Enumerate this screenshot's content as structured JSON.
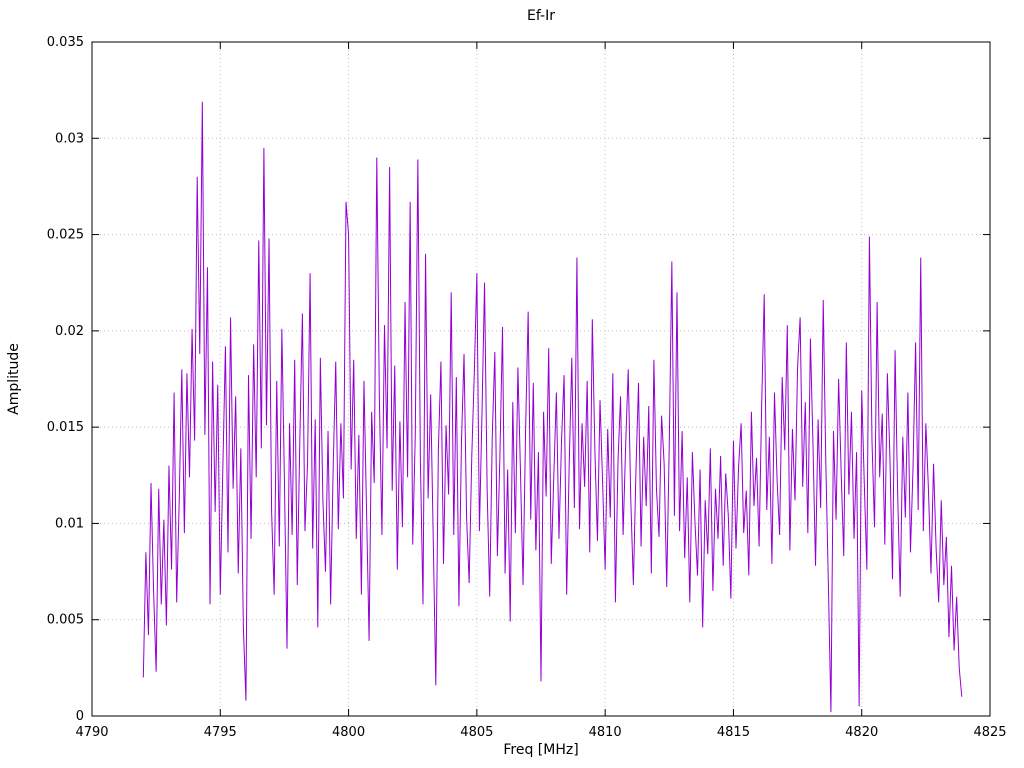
{
  "chart_data": {
    "type": "line",
    "title": "Ef-Ir",
    "xlabel": "Freq [MHz]",
    "ylabel": "Amplitude",
    "xlim": [
      4790,
      4825
    ],
    "ylim": [
      0,
      0.035
    ],
    "x_ticks": [
      4790,
      4795,
      4800,
      4805,
      4810,
      4815,
      4820,
      4825
    ],
    "x_tick_labels": [
      "4790",
      "4795",
      "4800",
      "4805",
      "4810",
      "4815",
      "4820",
      "4825"
    ],
    "y_ticks": [
      0,
      0.005,
      0.01,
      0.015,
      0.02,
      0.025,
      0.03,
      0.035
    ],
    "y_tick_labels": [
      "0",
      "0.005",
      "0.01",
      "0.015",
      "0.02",
      "0.025",
      "0.03",
      "0.035"
    ],
    "grid": true,
    "legend_position": "none",
    "line_color": "#9400d3",
    "grid_color": "#c0c0c0",
    "border_color": "#000000",
    "background_color": "#ffffff",
    "x_start": 4792.0,
    "x_step": 0.1,
    "values": [
      0.002,
      0.0085,
      0.0042,
      0.0121,
      0.0065,
      0.0023,
      0.0118,
      0.0058,
      0.0102,
      0.0047,
      0.013,
      0.0076,
      0.0168,
      0.0059,
      0.0112,
      0.018,
      0.0095,
      0.0178,
      0.0124,
      0.0201,
      0.0143,
      0.028,
      0.0188,
      0.0319,
      0.0146,
      0.0233,
      0.0058,
      0.0184,
      0.0106,
      0.0172,
      0.0063,
      0.0129,
      0.0192,
      0.0085,
      0.0207,
      0.0118,
      0.0166,
      0.0074,
      0.0139,
      0.0046,
      0.0008,
      0.0177,
      0.0092,
      0.0193,
      0.0124,
      0.0247,
      0.0139,
      0.0295,
      0.0151,
      0.0248,
      0.0106,
      0.0063,
      0.0174,
      0.0088,
      0.0201,
      0.0122,
      0.0035,
      0.0152,
      0.0094,
      0.0185,
      0.0068,
      0.0143,
      0.0209,
      0.0096,
      0.0131,
      0.023,
      0.0087,
      0.0154,
      0.0046,
      0.0186,
      0.0112,
      0.0075,
      0.0148,
      0.0058,
      0.0129,
      0.0184,
      0.0097,
      0.0152,
      0.0113,
      0.0267,
      0.025,
      0.0128,
      0.0185,
      0.0092,
      0.0146,
      0.0063,
      0.0174,
      0.0107,
      0.0039,
      0.0158,
      0.0121,
      0.029,
      0.0165,
      0.0094,
      0.0203,
      0.0139,
      0.0285,
      0.0117,
      0.0182,
      0.0076,
      0.0153,
      0.0098,
      0.0215,
      0.0124,
      0.0267,
      0.0089,
      0.0146,
      0.0289,
      0.0132,
      0.0058,
      0.024,
      0.0113,
      0.0167,
      0.0092,
      0.0016,
      0.0138,
      0.0184,
      0.0079,
      0.0151,
      0.0115,
      0.022,
      0.0094,
      0.0176,
      0.0057,
      0.0142,
      0.0188,
      0.0103,
      0.0069,
      0.0134,
      0.0178,
      0.023,
      0.0096,
      0.0157,
      0.0225,
      0.0118,
      0.0062,
      0.0145,
      0.0189,
      0.0083,
      0.0136,
      0.0202,
      0.0074,
      0.0128,
      0.0049,
      0.0163,
      0.0095,
      0.0181,
      0.0127,
      0.0068,
      0.0149,
      0.021,
      0.0102,
      0.0173,
      0.0086,
      0.0137,
      0.0018,
      0.0158,
      0.0114,
      0.0191,
      0.0079,
      0.0125,
      0.0168,
      0.0092,
      0.0143,
      0.0177,
      0.0063,
      0.0131,
      0.0186,
      0.0108,
      0.0238,
      0.0097,
      0.0152,
      0.0119,
      0.0174,
      0.0085,
      0.0206,
      0.0138,
      0.0091,
      0.0164,
      0.0122,
      0.0076,
      0.0149,
      0.0103,
      0.0178,
      0.0059,
      0.0132,
      0.0166,
      0.0094,
      0.0141,
      0.018,
      0.0112,
      0.0068,
      0.0127,
      0.0173,
      0.0088,
      0.0145,
      0.0109,
      0.0161,
      0.0074,
      0.0185,
      0.0118,
      0.0093,
      0.0156,
      0.0131,
      0.0067,
      0.0142,
      0.0236,
      0.0104,
      0.022,
      0.0096,
      0.0148,
      0.0082,
      0.0124,
      0.0059,
      0.0137,
      0.0101,
      0.0073,
      0.0128,
      0.0046,
      0.0112,
      0.0084,
      0.0139,
      0.0065,
      0.0118,
      0.0092,
      0.0135,
      0.0078,
      0.0126,
      0.0104,
      0.0061,
      0.0143,
      0.0087,
      0.0129,
      0.0152,
      0.0095,
      0.0117,
      0.0073,
      0.0158,
      0.0109,
      0.0134,
      0.0088,
      0.0161,
      0.0219,
      0.0107,
      0.0145,
      0.0079,
      0.0168,
      0.0123,
      0.0094,
      0.0176,
      0.0138,
      0.0203,
      0.0086,
      0.0149,
      0.0112,
      0.0181,
      0.0207,
      0.0119,
      0.0163,
      0.0095,
      0.0196,
      0.0141,
      0.0078,
      0.0154,
      0.0108,
      0.0216,
      0.0132,
      0.0069,
      0.0002,
      0.0148,
      0.0102,
      0.0175,
      0.0126,
      0.0083,
      0.0194,
      0.0115,
      0.0158,
      0.0092,
      0.0137,
      0.0005,
      0.0169,
      0.0121,
      0.0076,
      0.0249,
      0.0143,
      0.0098,
      0.0215,
      0.0124,
      0.0157,
      0.0089,
      0.0178,
      0.0134,
      0.0071,
      0.019,
      0.0116,
      0.0062,
      0.0145,
      0.0103,
      0.0168,
      0.0085,
      0.0129,
      0.0194,
      0.0107,
      0.0238,
      0.0096,
      0.0152,
      0.0118,
      0.0074,
      0.0131,
      0.0087,
      0.0059,
      0.0112,
      0.0068,
      0.0093,
      0.0041,
      0.0078,
      0.0034,
      0.0062,
      0.0025,
      0.001
    ]
  }
}
